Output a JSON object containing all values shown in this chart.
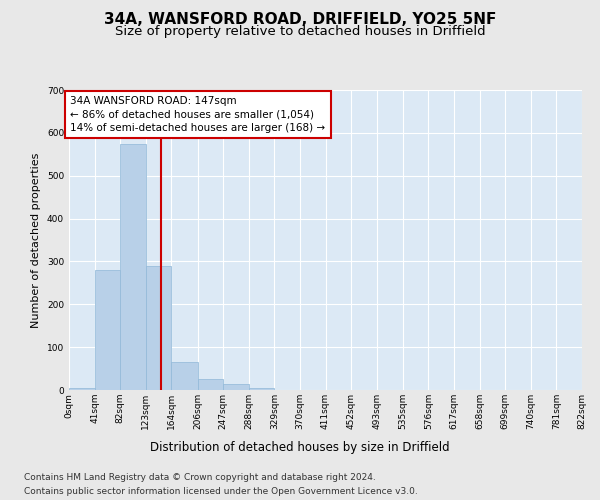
{
  "title1": "34A, WANSFORD ROAD, DRIFFIELD, YO25 5NF",
  "title2": "Size of property relative to detached houses in Driffield",
  "xlabel": "Distribution of detached houses by size in Driffield",
  "ylabel": "Number of detached properties",
  "bin_edges": [
    0,
    41,
    82,
    123,
    164,
    206,
    247,
    288,
    329,
    370,
    411,
    452,
    493,
    535,
    576,
    617,
    658,
    699,
    740,
    781,
    822
  ],
  "bin_counts": [
    5,
    280,
    575,
    290,
    65,
    25,
    15,
    5,
    0,
    0,
    0,
    0,
    0,
    0,
    0,
    0,
    0,
    0,
    0,
    0
  ],
  "bar_color": "#b8d0e8",
  "bar_edge_color": "#90b8d8",
  "property_size": 147,
  "vline_color": "#cc0000",
  "annotation_line1": "34A WANSFORD ROAD: 147sqm",
  "annotation_line2": "← 86% of detached houses are smaller (1,054)",
  "annotation_line3": "14% of semi-detached houses are larger (168) →",
  "annotation_box_color": "#ffffff",
  "annotation_box_edgecolor": "#cc0000",
  "ylim": [
    0,
    700
  ],
  "yticks": [
    0,
    100,
    200,
    300,
    400,
    500,
    600,
    700
  ],
  "figure_bg_color": "#e8e8e8",
  "plot_bg_color": "#dce9f5",
  "footer_line1": "Contains HM Land Registry data © Crown copyright and database right 2024.",
  "footer_line2": "Contains public sector information licensed under the Open Government Licence v3.0.",
  "title1_fontsize": 11,
  "title2_fontsize": 9.5,
  "annotation_fontsize": 7.5,
  "footer_fontsize": 6.5,
  "xlabel_fontsize": 8.5,
  "ylabel_fontsize": 8,
  "tick_fontsize": 6.5
}
